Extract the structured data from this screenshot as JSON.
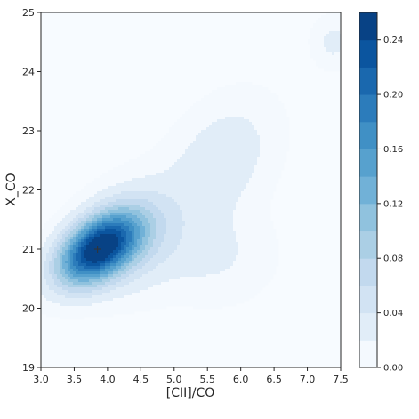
{
  "chart_data": {
    "type": "heatmap",
    "subtype": "filled-contour (2D kernel density estimate)",
    "title": "",
    "xlabel": "[CII]/CO",
    "ylabel": "X_CO",
    "xlim": [
      3.0,
      7.5
    ],
    "ylim": [
      19,
      25
    ],
    "x_ticks": [
      "3.0",
      "3.5",
      "4.0",
      "4.5",
      "5.0",
      "5.5",
      "6.0",
      "6.5",
      "7.0",
      "7.5"
    ],
    "y_ticks": [
      "19",
      "20",
      "21",
      "22",
      "23",
      "24",
      "25"
    ],
    "colormap": "Blues",
    "colorbar": {
      "min": 0.0,
      "max": 0.26,
      "ticks": [
        "0.00",
        "0.04",
        "0.08",
        "0.12",
        "0.16",
        "0.20",
        "0.24"
      ],
      "level_step": 0.02,
      "levels": [
        0.0,
        0.02,
        0.04,
        0.06,
        0.08,
        0.1,
        0.12,
        0.14,
        0.16,
        0.18,
        0.2,
        0.22,
        0.24,
        0.26
      ]
    },
    "peak_marker": {
      "x": 3.85,
      "y": 21.0,
      "symbol": "+"
    },
    "density_components": [
      {
        "x": 3.85,
        "y": 21.0,
        "sx": 0.42,
        "sy": 0.42,
        "rho": 0.45,
        "weight": 0.25
      },
      {
        "x": 4.4,
        "y": 21.2,
        "sx": 0.5,
        "sy": 0.6,
        "rho": 0.2,
        "weight": 0.055
      },
      {
        "x": 5.7,
        "y": 22.5,
        "sx": 0.55,
        "sy": 0.7,
        "rho": 0.35,
        "weight": 0.035
      },
      {
        "x": 5.6,
        "y": 20.9,
        "sx": 0.6,
        "sy": 0.55,
        "rho": 0.0,
        "weight": 0.022
      },
      {
        "x": 7.4,
        "y": 24.5,
        "sx": 0.22,
        "sy": 0.3,
        "rho": 0.0,
        "weight": 0.025
      }
    ],
    "grid": false,
    "legend": "none"
  }
}
